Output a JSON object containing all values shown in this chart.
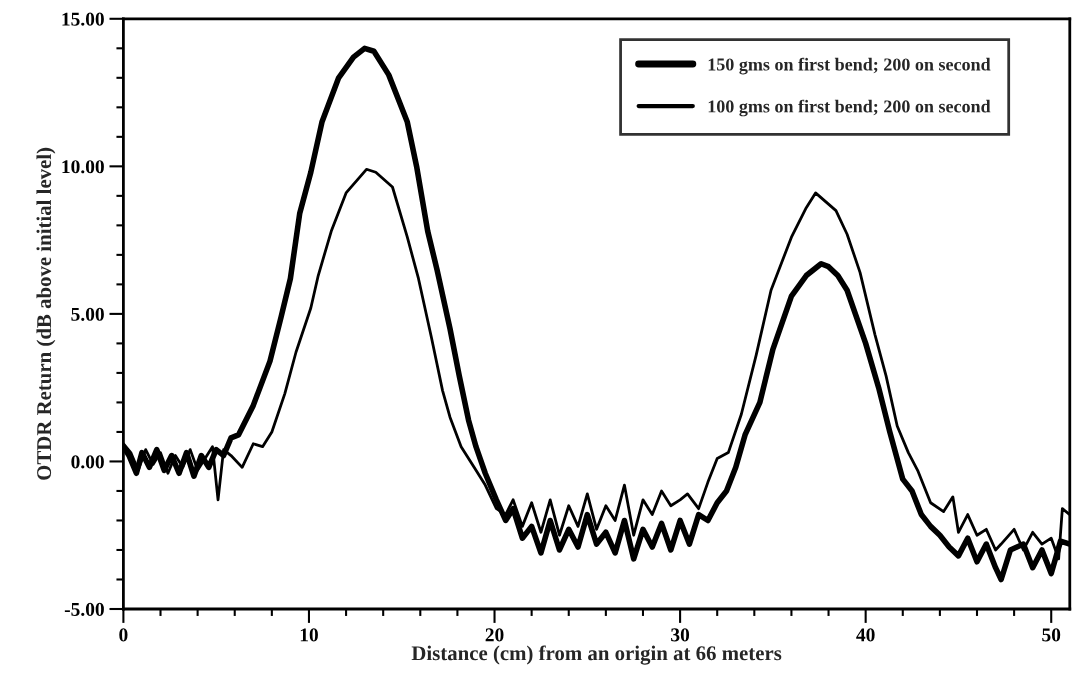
{
  "chart_data": {
    "type": "line",
    "xlabel": "Distance (cm) from an origin at 66 meters",
    "ylabel": "OTDR Return (dB above initial level)",
    "xlim": [
      0,
      51
    ],
    "ylim": [
      -5,
      15
    ],
    "xticks": [
      0,
      {
        "value": 2,
        "label": null
      },
      {
        "value": 4,
        "label": null
      },
      {
        "value": 6,
        "label": null
      },
      {
        "value": 8,
        "label": null
      },
      10,
      {
        "value": 12,
        "label": null
      },
      {
        "value": 14,
        "label": null
      },
      {
        "value": 16,
        "label": null
      },
      {
        "value": 18,
        "label": null
      },
      20,
      {
        "value": 22,
        "label": null
      },
      {
        "value": 24,
        "label": null
      },
      {
        "value": 26,
        "label": null
      },
      {
        "value": 28,
        "label": null
      },
      30,
      {
        "value": 32,
        "label": null
      },
      {
        "value": 34,
        "label": null
      },
      {
        "value": 36,
        "label": null
      },
      {
        "value": 38,
        "label": null
      },
      40,
      {
        "value": 42,
        "label": null
      },
      {
        "value": 44,
        "label": null
      },
      {
        "value": 46,
        "label": null
      },
      {
        "value": 48,
        "label": null
      },
      50
    ],
    "yticks": [
      {
        "value": -5,
        "label": "-5.00"
      },
      {
        "value": -4,
        "label": null
      },
      {
        "value": -3,
        "label": null
      },
      {
        "value": -2,
        "label": null
      },
      {
        "value": -1,
        "label": null
      },
      {
        "value": 0,
        "label": "0.00"
      },
      {
        "value": 1,
        "label": null
      },
      {
        "value": 2,
        "label": null
      },
      {
        "value": 3,
        "label": null
      },
      {
        "value": 4,
        "label": null
      },
      {
        "value": 5,
        "label": "5.00"
      },
      {
        "value": 6,
        "label": null
      },
      {
        "value": 7,
        "label": null
      },
      {
        "value": 8,
        "label": null
      },
      {
        "value": 9,
        "label": null
      },
      {
        "value": 10,
        "label": "10.00"
      },
      {
        "value": 11,
        "label": null
      },
      {
        "value": 12,
        "label": null
      },
      {
        "value": 13,
        "label": null
      },
      {
        "value": 14,
        "label": null
      },
      {
        "value": 15,
        "label": "15.00"
      }
    ],
    "grid": false,
    "legend": "top right",
    "marker": "none",
    "line_style": "solid",
    "series": [
      {
        "name": "150 gms on first bend; 200 on second",
        "color": "#000000",
        "x": [
          0,
          0.3,
          0.7,
          1.0,
          1.4,
          1.8,
          2.2,
          2.6,
          3.0,
          3.4,
          3.8,
          4.2,
          4.6,
          5.0,
          5.4,
          5.8,
          6.2,
          7.0,
          7.9,
          8.5,
          9.0,
          9.5,
          10.1,
          10.7,
          11.6,
          12.4,
          13.0,
          13.5,
          14.3,
          15.3,
          15.8,
          16.4,
          16.9,
          17.6,
          18.1,
          18.6,
          19.0,
          19.5,
          20.1,
          20.6,
          21.0,
          21.5,
          22.0,
          22.5,
          23.0,
          23.5,
          24.0,
          24.5,
          25.0,
          25.5,
          26.0,
          26.5,
          27.0,
          27.5,
          28.0,
          28.5,
          29.0,
          29.5,
          30.0,
          30.5,
          31.0,
          31.5,
          32.0,
          32.5,
          33.0,
          33.5,
          34.3,
          35.0,
          36.0,
          36.8,
          37.6,
          38.0,
          38.5,
          39.0,
          40.0,
          40.7,
          41.3,
          42.0,
          42.5,
          43.0,
          43.5,
          44.0,
          44.5,
          45.0,
          45.5,
          46.0,
          46.5,
          47.0,
          47.3,
          47.8,
          48.5,
          49.0,
          49.5,
          50.0,
          50.5,
          51.0
        ],
        "values": [
          0.5,
          0.2,
          -0.4,
          0.3,
          -0.2,
          0.4,
          -0.3,
          0.2,
          -0.4,
          0.3,
          -0.5,
          0.2,
          -0.2,
          0.4,
          0.2,
          0.8,
          0.9,
          1.9,
          3.4,
          4.9,
          6.2,
          8.4,
          9.8,
          11.5,
          13.0,
          13.7,
          14.0,
          13.9,
          13.1,
          11.5,
          10.0,
          7.8,
          6.5,
          4.5,
          2.9,
          1.4,
          0.5,
          -0.4,
          -1.3,
          -2.0,
          -1.6,
          -2.6,
          -2.2,
          -3.1,
          -2.0,
          -3.0,
          -2.3,
          -2.9,
          -1.8,
          -2.8,
          -2.4,
          -3.1,
          -2.0,
          -3.3,
          -2.3,
          -2.9,
          -2.1,
          -3.0,
          -2.0,
          -2.8,
          -1.8,
          -2.0,
          -1.4,
          -1.0,
          -0.2,
          0.9,
          2.0,
          3.8,
          5.6,
          6.3,
          6.7,
          6.6,
          6.3,
          5.8,
          4.0,
          2.5,
          1.0,
          -0.6,
          -1.0,
          -1.8,
          -2.2,
          -2.5,
          -2.9,
          -3.2,
          -2.6,
          -3.4,
          -2.8,
          -3.6,
          -4.0,
          -3.0,
          -2.8,
          -3.6,
          -3.0,
          -3.8,
          -2.7,
          -2.8
        ]
      },
      {
        "name": "100 gms on first bend; 200 on second",
        "color": "#000000",
        "x": [
          0,
          0.4,
          0.8,
          1.2,
          1.6,
          2.0,
          2.4,
          2.8,
          3.2,
          3.6,
          4.0,
          4.4,
          4.8,
          5.1,
          5.4,
          5.8,
          6.4,
          7.0,
          7.5,
          8.0,
          8.7,
          9.3,
          10.1,
          10.5,
          11.2,
          12.0,
          13.1,
          13.6,
          14.5,
          15.3,
          15.9,
          16.6,
          17.2,
          17.6,
          18.2,
          18.9,
          19.5,
          20.1,
          20.6,
          21.0,
          21.5,
          22.0,
          22.5,
          23.0,
          23.5,
          24.0,
          24.5,
          25.0,
          25.5,
          26.0,
          26.5,
          27.0,
          27.5,
          28.0,
          28.5,
          29.0,
          29.5,
          30.0,
          30.4,
          31.0,
          31.5,
          32.0,
          32.6,
          33.3,
          34.1,
          34.9,
          36.0,
          36.8,
          37.3,
          38.4,
          39.0,
          39.7,
          40.5,
          41.1,
          41.7,
          42.3,
          42.8,
          43.5,
          44.2,
          44.7,
          45.0,
          45.5,
          46.0,
          46.5,
          47.0,
          47.3,
          48.0,
          48.5,
          49.0,
          49.5,
          50.0,
          50.4,
          50.6,
          51.0
        ],
        "values": [
          0.6,
          0.3,
          -0.3,
          0.4,
          -0.1,
          0.3,
          -0.4,
          0.2,
          -0.2,
          0.4,
          -0.3,
          0.1,
          0.5,
          -1.3,
          0.4,
          0.2,
          -0.2,
          0.6,
          0.5,
          1.0,
          2.3,
          3.7,
          5.2,
          6.3,
          7.8,
          9.1,
          9.9,
          9.8,
          9.3,
          7.6,
          6.2,
          4.2,
          2.4,
          1.5,
          0.5,
          -0.2,
          -0.8,
          -1.6,
          -1.8,
          -1.3,
          -2.2,
          -1.4,
          -2.4,
          -1.3,
          -2.5,
          -1.5,
          -2.2,
          -1.1,
          -2.3,
          -1.5,
          -2.0,
          -0.8,
          -2.5,
          -1.3,
          -1.8,
          -1.0,
          -1.5,
          -1.3,
          -1.1,
          -1.6,
          -0.7,
          0.1,
          0.3,
          1.6,
          3.6,
          5.8,
          7.6,
          8.6,
          9.1,
          8.5,
          7.7,
          6.4,
          4.3,
          2.9,
          1.2,
          0.3,
          -0.3,
          -1.4,
          -1.7,
          -1.2,
          -2.4,
          -1.8,
          -2.5,
          -2.3,
          -3.0,
          -2.8,
          -2.3,
          -3.0,
          -2.4,
          -2.8,
          -2.6,
          -3.3,
          -1.6,
          -1.8
        ]
      }
    ]
  }
}
